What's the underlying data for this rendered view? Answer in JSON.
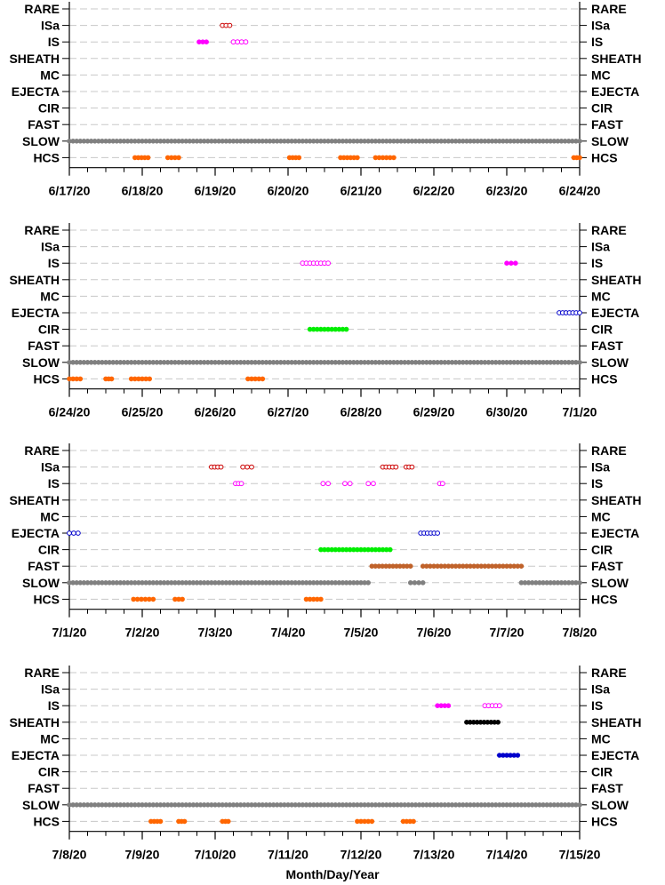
{
  "figure": {
    "xlabel": "Month/Day/Year"
  },
  "categories": [
    "RARE",
    "ISa",
    "IS",
    "SHEATH",
    "MC",
    "EJECTA",
    "CIR",
    "FAST",
    "SLOW",
    "HCS"
  ],
  "colors": {
    "ISa": "#cc0000",
    "IS": "#ff00ff",
    "SHEATH": "#000000",
    "EJECTA": "#0000cc",
    "CIR": "#00ee00",
    "FAST": "#c0622a",
    "SLOW": "#808080",
    "HCS": "#ff6600"
  },
  "chart_data": [
    {
      "type": "scatter",
      "xlabel": "",
      "ylabel": "",
      "xlim": [
        "6/17/20",
        "6/24/20"
      ],
      "x_tick_labels": [
        "6/17/20",
        "6/18/20",
        "6/19/20",
        "6/20/20",
        "6/21/20",
        "6/22/20",
        "6/23/20",
        "6/24/20"
      ],
      "y_tick_labels": [
        "RARE",
        "ISa",
        "IS",
        "SHEATH",
        "MC",
        "EJECTA",
        "CIR",
        "FAST",
        "SLOW",
        "HCS"
      ],
      "grid": "dashed horizontal",
      "series": [
        {
          "name": "ISa",
          "marker": "open",
          "x": [
            2.1,
            2.2
          ]
        },
        {
          "name": "IS",
          "marker": "filled",
          "x": [
            1.78,
            1.88
          ]
        },
        {
          "name": "IS",
          "marker": "open",
          "x": [
            2.25,
            2.42
          ]
        },
        {
          "name": "SLOW",
          "marker": "filled",
          "x": [
            0.0,
            7.0
          ]
        },
        {
          "name": "HCS",
          "marker": "filled",
          "x": [
            0.9,
            1.08
          ]
        },
        {
          "name": "HCS",
          "marker": "filled",
          "x": [
            1.35,
            1.5
          ]
        },
        {
          "name": "HCS",
          "marker": "filled",
          "x": [
            3.02,
            3.15
          ]
        },
        {
          "name": "HCS",
          "marker": "filled",
          "x": [
            3.72,
            3.95
          ]
        },
        {
          "name": "HCS",
          "marker": "filled",
          "x": [
            4.2,
            4.45
          ]
        },
        {
          "name": "HCS",
          "marker": "filled",
          "x": [
            6.92,
            7.0
          ]
        }
      ]
    },
    {
      "type": "scatter",
      "xlabel": "",
      "ylabel": "",
      "xlim": [
        "6/24/20",
        "7/1/20"
      ],
      "x_tick_labels": [
        "6/24/20",
        "6/25/20",
        "6/26/20",
        "6/27/20",
        "6/28/20",
        "6/29/20",
        "6/30/20",
        "7/1/20"
      ],
      "y_tick_labels": [
        "RARE",
        "ISa",
        "IS",
        "SHEATH",
        "MC",
        "EJECTA",
        "CIR",
        "FAST",
        "SLOW",
        "HCS"
      ],
      "grid": "dashed horizontal",
      "series": [
        {
          "name": "IS",
          "marker": "open",
          "x": [
            3.2,
            3.55
          ]
        },
        {
          "name": "IS",
          "marker": "filled",
          "x": [
            6.0,
            6.12
          ]
        },
        {
          "name": "EJECTA",
          "marker": "open",
          "x": [
            6.72,
            7.0
          ]
        },
        {
          "name": "CIR",
          "marker": "filled",
          "x": [
            3.3,
            3.8
          ]
        },
        {
          "name": "SLOW",
          "marker": "filled",
          "x": [
            0.0,
            7.0
          ]
        },
        {
          "name": "HCS",
          "marker": "filled",
          "x": [
            0.0,
            0.15
          ]
        },
        {
          "name": "HCS",
          "marker": "filled",
          "x": [
            0.5,
            0.58
          ]
        },
        {
          "name": "HCS",
          "marker": "filled",
          "x": [
            0.85,
            1.1
          ]
        },
        {
          "name": "HCS",
          "marker": "filled",
          "x": [
            2.45,
            2.65
          ]
        }
      ]
    },
    {
      "type": "scatter",
      "xlabel": "",
      "ylabel": "",
      "xlim": [
        "7/1/20",
        "7/8/20"
      ],
      "x_tick_labels": [
        "7/1/20",
        "7/2/20",
        "7/3/20",
        "7/4/20",
        "7/5/20",
        "7/6/20",
        "7/7/20",
        "7/8/20"
      ],
      "y_tick_labels": [
        "RARE",
        "ISa",
        "IS",
        "SHEATH",
        "MC",
        "EJECTA",
        "CIR",
        "FAST",
        "SLOW",
        "HCS"
      ],
      "grid": "dashed horizontal",
      "series": [
        {
          "name": "ISa",
          "marker": "open",
          "x": [
            1.95,
            2.08
          ]
        },
        {
          "name": "ISa",
          "marker": "open",
          "x": [
            2.38,
            2.5
          ]
        },
        {
          "name": "ISa",
          "marker": "open",
          "x": [
            4.3,
            4.48
          ]
        },
        {
          "name": "ISa",
          "marker": "open",
          "x": [
            4.62,
            4.7
          ]
        },
        {
          "name": "IS",
          "marker": "open",
          "x": [
            2.28,
            2.36
          ]
        },
        {
          "name": "IS",
          "marker": "open",
          "x": [
            3.48,
            3.55
          ]
        },
        {
          "name": "IS",
          "marker": "open",
          "x": [
            3.78,
            3.85
          ]
        },
        {
          "name": "IS",
          "marker": "open",
          "x": [
            4.1,
            4.17
          ]
        },
        {
          "name": "IS",
          "marker": "open",
          "x": [
            5.08,
            5.12
          ]
        },
        {
          "name": "EJECTA",
          "marker": "open",
          "x": [
            0.0,
            0.12
          ]
        },
        {
          "name": "EJECTA",
          "marker": "open",
          "x": [
            4.82,
            5.05
          ]
        },
        {
          "name": "CIR",
          "marker": "filled",
          "x": [
            3.45,
            4.4
          ]
        },
        {
          "name": "FAST",
          "marker": "filled",
          "x": [
            4.15,
            4.68
          ]
        },
        {
          "name": "FAST",
          "marker": "filled",
          "x": [
            4.85,
            6.2
          ]
        },
        {
          "name": "SLOW",
          "marker": "filled",
          "x": [
            0.0,
            4.1
          ]
        },
        {
          "name": "SLOW",
          "marker": "filled",
          "x": [
            4.68,
            4.85
          ]
        },
        {
          "name": "SLOW",
          "marker": "filled",
          "x": [
            6.2,
            7.0
          ]
        },
        {
          "name": "HCS",
          "marker": "filled",
          "x": [
            0.88,
            1.15
          ]
        },
        {
          "name": "HCS",
          "marker": "filled",
          "x": [
            1.45,
            1.55
          ]
        },
        {
          "name": "HCS",
          "marker": "filled",
          "x": [
            3.25,
            3.45
          ]
        }
      ]
    },
    {
      "type": "scatter",
      "xlabel": "Month/Day/Year",
      "ylabel": "",
      "xlim": [
        "7/8/20",
        "7/15/20"
      ],
      "x_tick_labels": [
        "7/8/20",
        "7/9/20",
        "7/10/20",
        "7/11/20",
        "7/12/20",
        "7/13/20",
        "7/14/20",
        "7/15/20"
      ],
      "y_tick_labels": [
        "RARE",
        "ISa",
        "IS",
        "SHEATH",
        "MC",
        "EJECTA",
        "CIR",
        "FAST",
        "SLOW",
        "HCS"
      ],
      "grid": "dashed horizontal",
      "series": [
        {
          "name": "IS",
          "marker": "filled",
          "x": [
            5.05,
            5.2
          ]
        },
        {
          "name": "IS",
          "marker": "open",
          "x": [
            5.7,
            5.9
          ]
        },
        {
          "name": "SHEATH",
          "marker": "filled",
          "x": [
            5.45,
            5.88
          ]
        },
        {
          "name": "EJECTA",
          "marker": "filled",
          "x": [
            5.9,
            6.15
          ]
        },
        {
          "name": "SLOW",
          "marker": "filled",
          "x": [
            0.0,
            7.0
          ]
        },
        {
          "name": "HCS",
          "marker": "filled",
          "x": [
            1.12,
            1.25
          ]
        },
        {
          "name": "HCS",
          "marker": "filled",
          "x": [
            1.5,
            1.58
          ]
        },
        {
          "name": "HCS",
          "marker": "filled",
          "x": [
            2.1,
            2.18
          ]
        },
        {
          "name": "HCS",
          "marker": "filled",
          "x": [
            3.95,
            4.15
          ]
        },
        {
          "name": "HCS",
          "marker": "filled",
          "x": [
            4.58,
            4.72
          ]
        }
      ]
    }
  ]
}
